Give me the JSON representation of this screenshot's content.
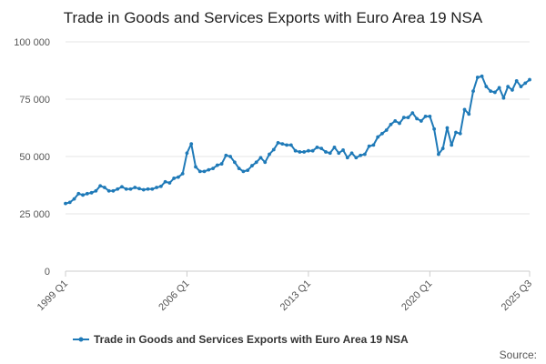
{
  "chart_data": {
    "type": "line",
    "title": "Trade in Goods and Services Exports with Euro Area 19 NSA",
    "xlabel": "",
    "ylabel": "",
    "ylim": [
      0,
      100000
    ],
    "yticks": [
      0,
      25000,
      50000,
      75000,
      100000
    ],
    "ytick_labels": [
      "0",
      "25 000",
      "50 000",
      "75 000",
      "100 000"
    ],
    "x_start": "1999 Q1",
    "x_end": "2025 Q3",
    "xtick_labels": [
      "1999 Q1",
      "2006 Q1",
      "2013 Q1",
      "2020 Q1",
      "2025 Q3"
    ],
    "grid": "horizontal",
    "legend_position": "bottom",
    "color": "#1f7ab8",
    "series": [
      {
        "name": "Trade in Goods and Services Exports with Euro Area 19 NSA",
        "values": [
          29500,
          30000,
          31500,
          33800,
          33200,
          33800,
          34200,
          35000,
          37200,
          36500,
          35000,
          35000,
          35800,
          36800,
          35800,
          35800,
          36500,
          36000,
          35500,
          35800,
          35800,
          36500,
          37000,
          39000,
          38500,
          40500,
          41000,
          42500,
          51500,
          55500,
          45500,
          43500,
          43500,
          44200,
          44800,
          46200,
          46800,
          50500,
          50000,
          47500,
          44800,
          43500,
          44000,
          46000,
          47500,
          49500,
          47500,
          51000,
          53000,
          56000,
          55500,
          55000,
          55000,
          52500,
          52000,
          52000,
          52500,
          52500,
          54000,
          53500,
          52000,
          51500,
          54000,
          51500,
          52800,
          49500,
          51500,
          49500,
          50500,
          51000,
          54500,
          55000,
          58500,
          60000,
          61500,
          64000,
          65500,
          64500,
          67000,
          67000,
          69000,
          66500,
          65500,
          67500,
          67500,
          62000,
          51000,
          53500,
          62500,
          55000,
          60500,
          60000,
          70500,
          68500,
          78500,
          84500,
          85000,
          80500,
          78500,
          78000,
          80000,
          75500,
          80500,
          79000,
          83000,
          80500,
          82000,
          83500
        ]
      }
    ]
  },
  "source_label": "Source:"
}
